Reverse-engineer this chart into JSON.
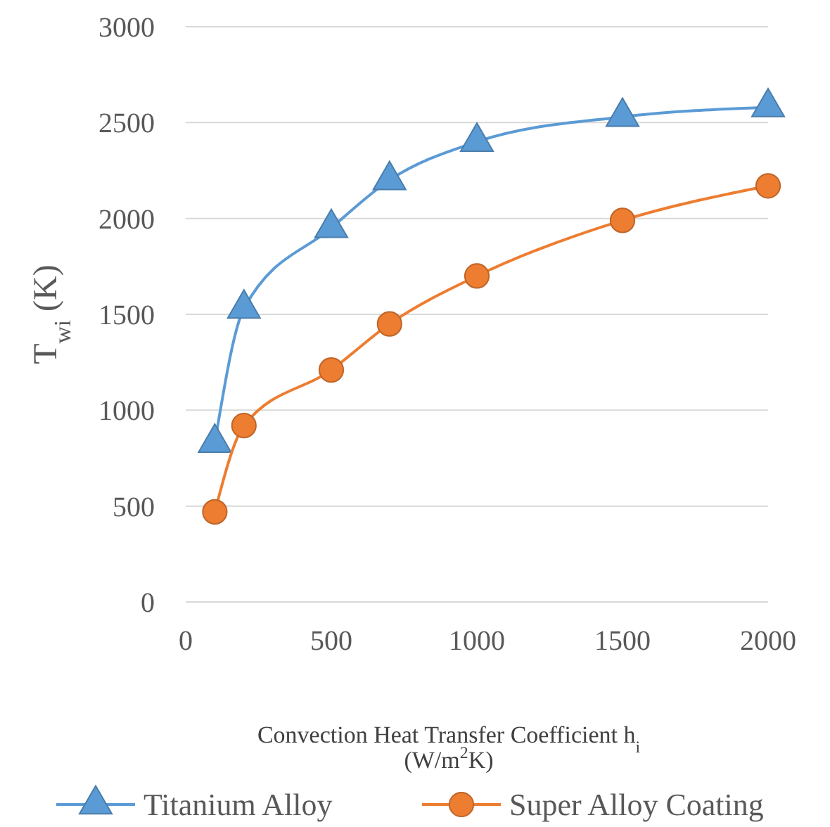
{
  "chart_data": {
    "type": "line",
    "xlabel": "Convection Heat Transfer Coefficient h$_{i}$ (W/m$^{2}$K)",
    "ylabel": "T$_{wi}$ (K)",
    "x": [
      100,
      200,
      500,
      700,
      1000,
      1500,
      2000
    ],
    "xlim": [
      0,
      2000
    ],
    "xticks": [
      0,
      500,
      1000,
      1500,
      2000
    ],
    "ylim": [
      0,
      3000
    ],
    "yticks": [
      0,
      500,
      1000,
      1500,
      2000,
      2500,
      3000
    ],
    "grid": "y",
    "legend": "bottom",
    "series": [
      {
        "name": "Titanium Alloy",
        "color": "#5b9bd5",
        "marker": "triangle",
        "values": [
          830,
          1530,
          1950,
          2200,
          2400,
          2530,
          2580
        ]
      },
      {
        "name": "Super Alloy Coating",
        "color": "#ed7d31",
        "marker": "circle",
        "values": [
          470,
          920,
          1210,
          1450,
          1700,
          1990,
          2170
        ]
      }
    ]
  }
}
